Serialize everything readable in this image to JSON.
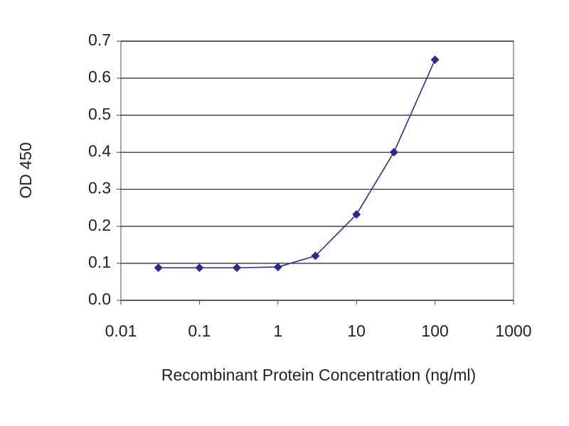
{
  "chart_data": {
    "type": "line",
    "xlabel": "Recombinant Protein Concentration (ng/ml)",
    "ylabel": "OD 450",
    "x": [
      0.03,
      0.1,
      0.3,
      1,
      3,
      10,
      30,
      100
    ],
    "values": [
      0.088,
      0.088,
      0.088,
      0.09,
      0.12,
      0.232,
      0.4,
      0.65
    ],
    "color": "#2b2b8c",
    "log_x": true,
    "grid": true,
    "xlim": [
      0.01,
      1000
    ],
    "ylim": [
      0,
      0.7
    ],
    "xticks": [
      0.01,
      0.1,
      1,
      10,
      100,
      1000
    ],
    "yticks": [
      {
        "value": 0,
        "label": "0.0"
      },
      0.1,
      0.2,
      0.3,
      0.4,
      0.5,
      0.6,
      0.7
    ]
  }
}
